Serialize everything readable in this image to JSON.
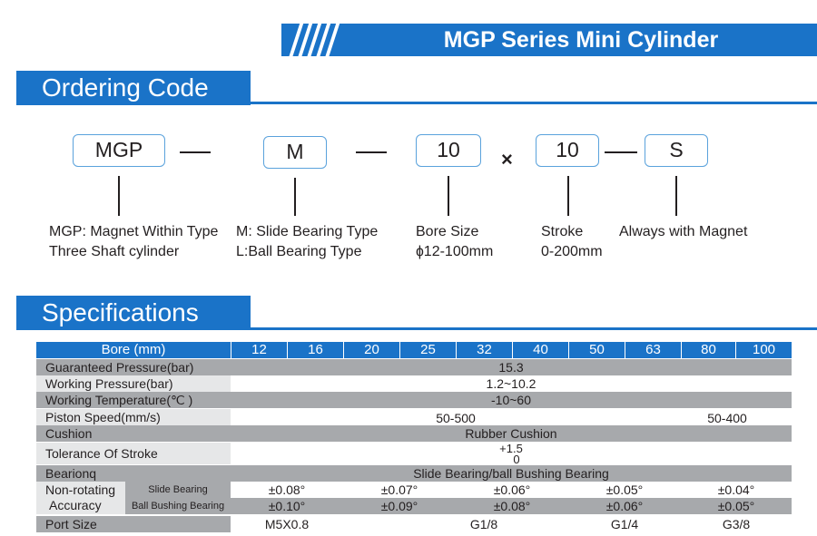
{
  "banner": {
    "title": "MGP Series Mini Cylinder"
  },
  "sections": {
    "ordering": "Ordering Code",
    "specs": "Specifications"
  },
  "ordering": {
    "codes": [
      "MGP",
      "M",
      "10",
      "10",
      "S"
    ],
    "times_symbol": "×",
    "descriptions": [
      [
        "MGP: Magnet Within Type",
        "Three Shaft cylinder"
      ],
      [
        "M: Slide Bearing Type",
        "L:Ball Bearing Type"
      ],
      [
        "Bore Size",
        "ɸ12-100mm"
      ],
      [
        "Stroke",
        "0-200mm"
      ],
      [
        "Always with Magnet"
      ]
    ]
  },
  "specs": {
    "header_label": "Bore (mm)",
    "bores": [
      "12",
      "16",
      "20",
      "25",
      "32",
      "40",
      "50",
      "63",
      "80",
      "100"
    ],
    "guaranteed_pressure": {
      "label": "Guaranteed Pressure(bar)",
      "value": "15.3"
    },
    "working_pressure": {
      "label": "Working Pressure(bar)",
      "value": "1.2~10.2"
    },
    "working_temperature": {
      "label": "Working Temperature(℃ )",
      "value": "-10~60"
    },
    "piston_speed": {
      "label": "Piston Speed(mm/s)",
      "values": [
        "50-500",
        "50-400"
      ]
    },
    "cushion": {
      "label": "Cushion",
      "value": "Rubber Cushion"
    },
    "tolerance": {
      "label": "Tolerance Of Stroke",
      "upper": "+1.5",
      "lower": "0"
    },
    "bearing": {
      "label": "Bearionq",
      "value": "Slide Bearing/ball Bushing Bearing"
    },
    "non_rotating": {
      "label_top": "Non-rotating",
      "label_bottom": "Accuracy",
      "slide": {
        "label": "Slide Bearing",
        "values": [
          "±0.08°",
          "±0.07°",
          "±0.06°",
          "±0.05°",
          "±0.04°"
        ]
      },
      "ball": {
        "label": "Ball Bushing Bearing",
        "values": [
          "±0.10°",
          "±0.09°",
          "±0.08°",
          "±0.06°",
          "±0.05°"
        ]
      }
    },
    "port_size": {
      "label": "Port Size",
      "values": [
        "M5X0.8",
        "G1/8",
        "G1/4",
        "G3/8"
      ]
    }
  },
  "colors": {
    "blue": "#1a73c8",
    "gray": "#a7a9ac",
    "light": "#e6e7e8",
    "box_border": "#5aa2dc"
  }
}
